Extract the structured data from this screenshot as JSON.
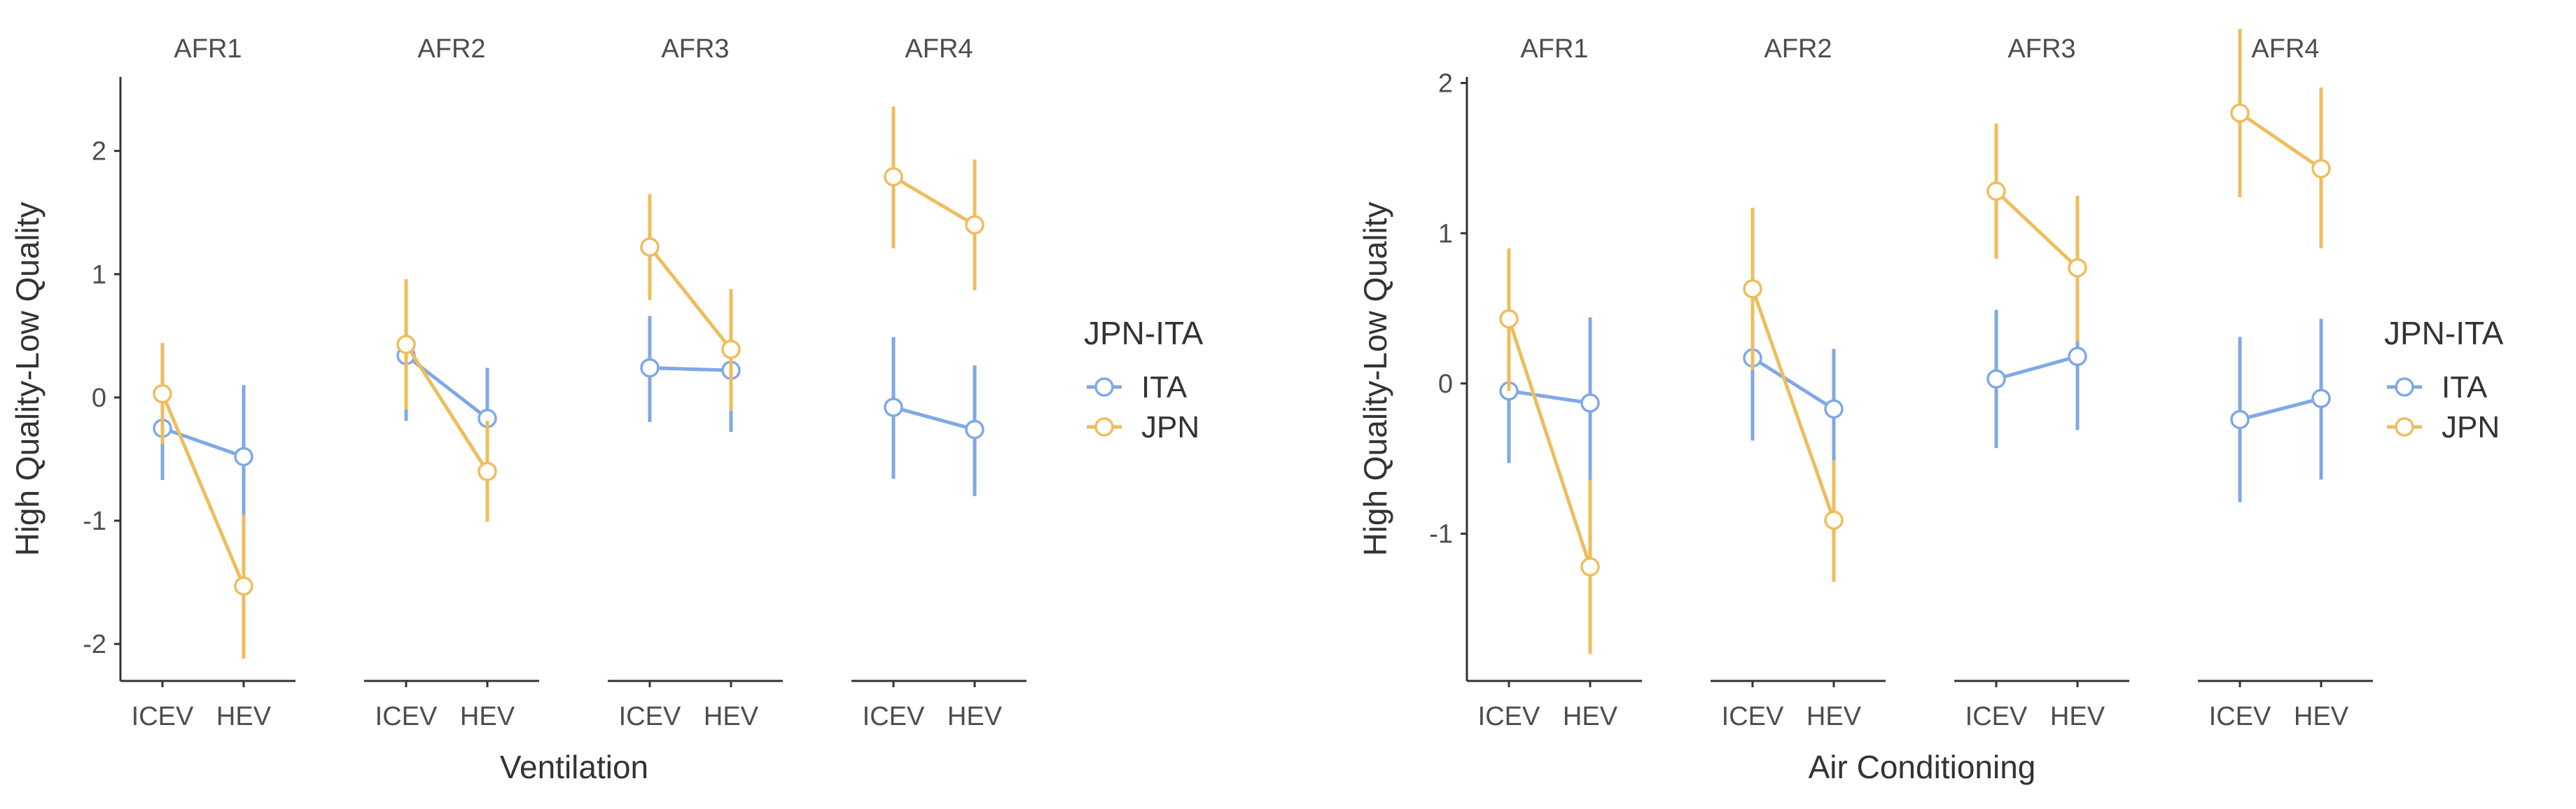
{
  "chart_data": [
    {
      "type": "line",
      "xlabel": "Ventilation",
      "ylabel": "High Quality-Low Quality",
      "ylim": [
        -2.3,
        2.6
      ],
      "yticks": [
        -2,
        -1,
        0,
        1,
        2
      ],
      "facets": [
        "AFR1",
        "AFR2",
        "AFR3",
        "AFR4"
      ],
      "categories": [
        "ICEV",
        "HEV"
      ],
      "legend_title": "JPN-ITA",
      "series": [
        {
          "name": "ITA",
          "color": "#7fa8e6",
          "points": [
            {
              "facet": "AFR1",
              "values": [
                -0.25,
                -0.48
              ],
              "lower": [
                -0.67,
                -1.07
              ],
              "upper": [
                0.16,
                0.1
              ]
            },
            {
              "facet": "AFR2",
              "values": [
                0.34,
                -0.17
              ],
              "lower": [
                -0.19,
                -0.57
              ],
              "upper": [
                0.86,
                0.24
              ]
            },
            {
              "facet": "AFR3",
              "values": [
                0.24,
                0.22
              ],
              "lower": [
                -0.2,
                -0.28
              ],
              "upper": [
                0.66,
                0.71
              ]
            },
            {
              "facet": "AFR4",
              "values": [
                -0.08,
                -0.26
              ],
              "lower": [
                -0.66,
                -0.8
              ],
              "upper": [
                0.49,
                0.26
              ]
            }
          ]
        },
        {
          "name": "JPN",
          "color": "#efbd5d",
          "points": [
            {
              "facet": "AFR1",
              "values": [
                0.03,
                -1.53
              ],
              "lower": [
                -0.38,
                -2.12
              ],
              "upper": [
                0.44,
                -0.95
              ]
            },
            {
              "facet": "AFR2",
              "values": [
                0.43,
                -0.6
              ],
              "lower": [
                -0.1,
                -1.01
              ],
              "upper": [
                0.96,
                -0.19
              ]
            },
            {
              "facet": "AFR3",
              "values": [
                1.22,
                0.39
              ],
              "lower": [
                0.79,
                -0.11
              ],
              "upper": [
                1.65,
                0.88
              ]
            },
            {
              "facet": "AFR4",
              "values": [
                1.79,
                1.4
              ],
              "lower": [
                1.21,
                0.87
              ],
              "upper": [
                2.36,
                1.93
              ]
            }
          ]
        }
      ]
    },
    {
      "type": "line",
      "xlabel": "Air Conditioning",
      "ylabel": "High Quality-Low Quality",
      "ylim": [
        -1.98,
        2.04
      ],
      "yticks": [
        -1,
        0,
        1,
        2
      ],
      "facets": [
        "AFR1",
        "AFR2",
        "AFR3",
        "AFR4"
      ],
      "categories": [
        "ICEV",
        "HEV"
      ],
      "legend_title": "JPN-ITA",
      "series": [
        {
          "name": "ITA",
          "color": "#7fa8e6",
          "points": [
            {
              "facet": "AFR1",
              "values": [
                -0.05,
                -0.13
              ],
              "lower": [
                -0.53,
                -0.71
              ],
              "upper": [
                0.42,
                0.44
              ]
            },
            {
              "facet": "AFR2",
              "values": [
                0.17,
                -0.17
              ],
              "lower": [
                -0.38,
                -0.58
              ],
              "upper": [
                0.71,
                0.23
              ]
            },
            {
              "facet": "AFR3",
              "values": [
                0.03,
                0.18
              ],
              "lower": [
                -0.43,
                -0.31
              ],
              "upper": [
                0.49,
                0.66
              ]
            },
            {
              "facet": "AFR4",
              "values": [
                -0.24,
                -0.1
              ],
              "lower": [
                -0.79,
                -0.64
              ],
              "upper": [
                0.31,
                0.43
              ]
            }
          ]
        },
        {
          "name": "JPN",
          "color": "#efbd5d",
          "points": [
            {
              "facet": "AFR1",
              "values": [
                0.43,
                -1.22
              ],
              "lower": [
                -0.05,
                -1.8
              ],
              "upper": [
                0.9,
                -0.64
              ]
            },
            {
              "facet": "AFR2",
              "values": [
                0.63,
                -0.91
              ],
              "lower": [
                0.09,
                -1.32
              ],
              "upper": [
                1.17,
                -0.51
              ]
            },
            {
              "facet": "AFR3",
              "values": [
                1.28,
                0.77
              ],
              "lower": [
                0.83,
                0.28
              ],
              "upper": [
                1.73,
                1.25
              ]
            },
            {
              "facet": "AFR4",
              "values": [
                1.8,
                1.43
              ],
              "lower": [
                1.24,
                0.9
              ],
              "upper": [
                2.36,
                1.97
              ]
            }
          ]
        }
      ]
    }
  ]
}
